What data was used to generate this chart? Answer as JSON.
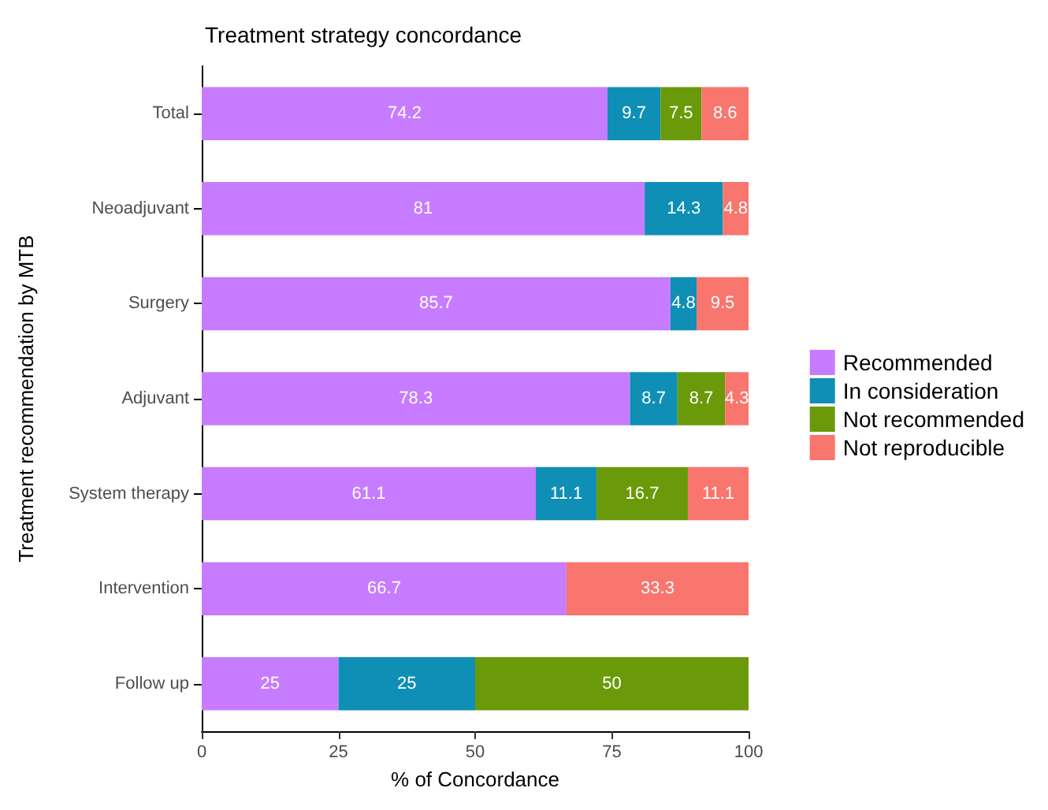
{
  "chart_data": {
    "type": "bar",
    "title": "Treatment strategy concordance",
    "xlabel": "% of Concordance",
    "ylabel": "Treatment recommendation by MTB",
    "orientation": "horizontal",
    "stacked": true,
    "categories": [
      "Total",
      "Neoadjuvant",
      "Surgery",
      "Adjuvant",
      "System therapy",
      "Intervention",
      "Follow up"
    ],
    "series": [
      {
        "name": "Recommended",
        "color": "#c77cff",
        "values": [
          74.2,
          81,
          85.7,
          78.3,
          61.1,
          66.7,
          25
        ]
      },
      {
        "name": "In consideration",
        "color": "#0f8fb5",
        "values": [
          9.7,
          14.3,
          4.8,
          8.7,
          11.1,
          null,
          25
        ]
      },
      {
        "name": "Not recommended",
        "color": "#6a9a0a",
        "values": [
          7.5,
          null,
          null,
          8.7,
          16.7,
          null,
          50
        ]
      },
      {
        "name": "Not reproducible",
        "color": "#f8766d",
        "values": [
          8.6,
          4.8,
          9.5,
          4.3,
          11.1,
          33.3,
          null
        ]
      }
    ],
    "xlim": [
      0,
      100
    ],
    "xticks": [
      0,
      25,
      50,
      75,
      100
    ],
    "grid": false,
    "legend": "right",
    "data_labels": true
  }
}
